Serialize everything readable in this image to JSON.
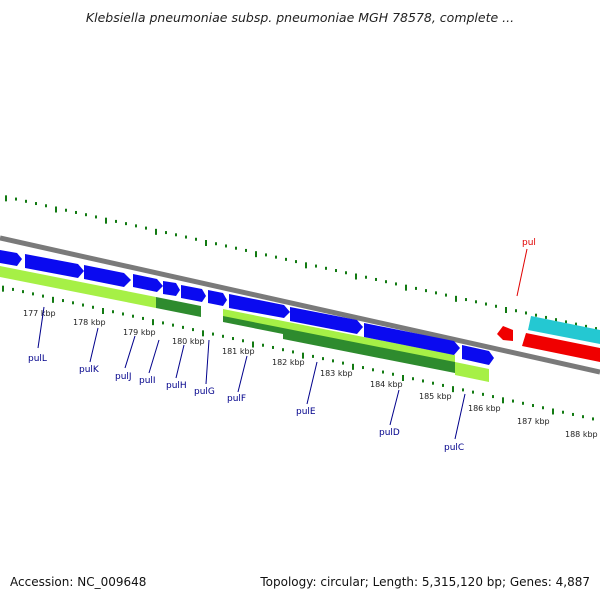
{
  "title": "Klebsiella pneumoniae subsp. pneumoniae MGH 78578, complete ...",
  "footer": {
    "accession": "Accession: NC_009648",
    "topology": "Topology: circular; Length: 5,315,120 bp; Genes: 4,887"
  },
  "colors": {
    "background": "#ffffff",
    "backbone": "#808080",
    "tick": "#127a12",
    "gene_forward": "#0a0af0",
    "gene_reverse": "#f00000",
    "cds_light": "#a6f046",
    "cds_dark": "#2e8b2e",
    "cyan": "#24c8d2",
    "label_blue": "#00008b",
    "label_red": "#e00000"
  },
  "scale": {
    "ticks": [
      "177 kbp",
      "178 kbp",
      "179 kbp",
      "180 kbp",
      "181 kbp",
      "182 kbp",
      "183 kbp",
      "184 kbp",
      "185 kbp",
      "186 kbp",
      "187 kbp",
      "188 kbp"
    ]
  },
  "genes": [
    {
      "name": "pulL"
    },
    {
      "name": "pulK"
    },
    {
      "name": "pulJ"
    },
    {
      "name": "pulI"
    },
    {
      "name": "pulH"
    },
    {
      "name": "pulG"
    },
    {
      "name": "pulF"
    },
    {
      "name": "pulE"
    },
    {
      "name": "pulD"
    },
    {
      "name": "pulC"
    },
    {
      "name": "pul",
      "strand": "reverse"
    }
  ]
}
